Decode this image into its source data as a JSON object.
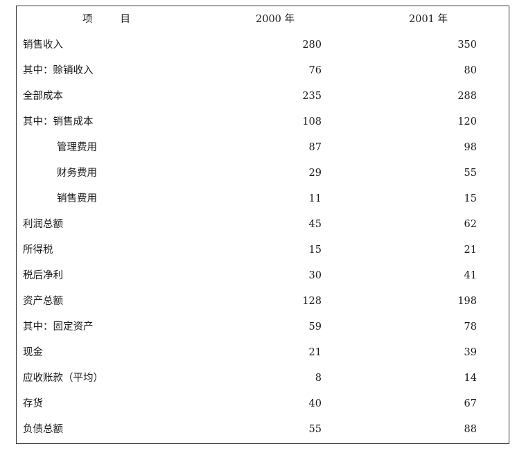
{
  "header": {
    "item_part1": "项",
    "item_part2": "目",
    "col_2000": "2000 年",
    "col_2001": "2001 年"
  },
  "rows": [
    {
      "label": "销售收入",
      "v2000": "280",
      "v2001": "350"
    },
    {
      "label": "其中：赊销收入",
      "v2000": "76",
      "v2001": "80"
    },
    {
      "label": "全部成本",
      "v2000": "235",
      "v2001": "288"
    },
    {
      "label": "其中：销售成本",
      "v2000": "108",
      "v2001": "120"
    },
    {
      "label": "管理费用",
      "v2000": "87",
      "v2001": "98"
    },
    {
      "label": "财务费用",
      "v2000": "29",
      "v2001": "55"
    },
    {
      "label": "销售费用",
      "v2000": "11",
      "v2001": "15"
    },
    {
      "label": "利润总额",
      "v2000": "45",
      "v2001": "62"
    },
    {
      "label": "所得税",
      "v2000": "15",
      "v2001": "21"
    },
    {
      "label": "税后净利",
      "v2000": "30",
      "v2001": "41"
    },
    {
      "label": "资产总额",
      "v2000": "128",
      "v2001": "198"
    },
    {
      "label": "其中：固定资产",
      "v2000": "59",
      "v2001": "78"
    },
    {
      "label": "现金",
      "v2000": "21",
      "v2001": "39"
    },
    {
      "label": "应收账款（平均）",
      "v2000": "8",
      "v2001": "14"
    },
    {
      "label": "存货",
      "v2000": "40",
      "v2001": "67"
    },
    {
      "label": "负债总额",
      "v2000": "55",
      "v2001": "88"
    }
  ]
}
